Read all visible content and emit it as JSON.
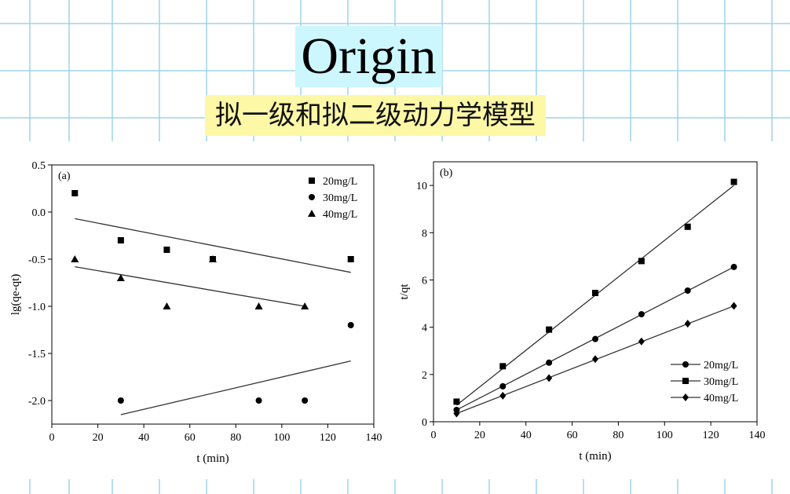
{
  "page": {
    "title": "Origin",
    "subtitle": "拟一级和拟二级动力学模型",
    "colors": {
      "grid": "#9fd4ec",
      "title_bg": "#ccf7ff",
      "subtitle_bg": "#fdf8a6"
    }
  },
  "chart_data": [
    {
      "type": "scatter",
      "panel_label": "(a)",
      "xlabel": "t (min)",
      "ylabel": "lg(qe-qt)",
      "xlim": [
        0,
        140
      ],
      "ylim": [
        -2.25,
        0.5
      ],
      "xticks": [
        "0",
        "20",
        "40",
        "60",
        "80",
        "100",
        "120",
        "140"
      ],
      "yticks": [
        "0.5",
        "0.0",
        "-0.5",
        "-1.0",
        "-1.5",
        "-2.0"
      ],
      "legend_position": "top-right",
      "series": [
        {
          "name": "20mg/L",
          "marker": "square",
          "x": [
            10,
            30,
            50,
            70,
            130
          ],
          "y": [
            0.2,
            -0.3,
            -0.4,
            -0.5,
            -0.5
          ],
          "fit": {
            "x": [
              10,
              130
            ],
            "y": [
              -0.07,
              -0.64
            ]
          }
        },
        {
          "name": "30mg/L",
          "marker": "circle",
          "x": [
            30,
            90,
            110,
            130
          ],
          "y": [
            -2.0,
            -2.0,
            -2.0,
            -1.2
          ],
          "fit": {
            "x": [
              30,
              130
            ],
            "y": [
              -2.15,
              -1.58
            ]
          }
        },
        {
          "name": "40mg/L",
          "marker": "triangle",
          "x": [
            10,
            30,
            50,
            70,
            90,
            110
          ],
          "y": [
            -0.5,
            -0.7,
            -1.0,
            -0.5,
            -1.0,
            -1.0
          ],
          "fit": {
            "x": [
              10,
              110
            ],
            "y": [
              -0.58,
              -1.0
            ]
          }
        }
      ]
    },
    {
      "type": "line",
      "panel_label": "(b)",
      "xlabel": "t (min)",
      "ylabel": "t/qt",
      "xlim": [
        0,
        140
      ],
      "ylim": [
        0,
        11
      ],
      "xticks": [
        "0",
        "20",
        "40",
        "60",
        "80",
        "100",
        "120",
        "140"
      ],
      "yticks": [
        "0",
        "2",
        "4",
        "6",
        "8",
        "10"
      ],
      "legend_position": "bottom-right",
      "series": [
        {
          "name": "20mg/L",
          "marker": "circle",
          "x": [
            10,
            30,
            50,
            70,
            90,
            110,
            130
          ],
          "y": [
            0.5,
            1.5,
            2.5,
            3.5,
            4.55,
            5.55,
            6.55
          ],
          "fit": {
            "x": [
              10,
              130
            ],
            "y": [
              0.5,
              6.55
            ]
          }
        },
        {
          "name": "30mg/L",
          "marker": "square",
          "x": [
            10,
            30,
            50,
            70,
            90,
            110,
            130
          ],
          "y": [
            0.85,
            2.35,
            3.9,
            5.45,
            6.8,
            8.25,
            10.15
          ],
          "fit": {
            "x": [
              10,
              130
            ],
            "y": [
              0.7,
              10.0
            ]
          }
        },
        {
          "name": "40mg/L",
          "marker": "diamond",
          "x": [
            10,
            30,
            50,
            70,
            90,
            110,
            130
          ],
          "y": [
            0.35,
            1.1,
            1.85,
            2.65,
            3.4,
            4.15,
            4.9
          ],
          "fit": {
            "x": [
              10,
              130
            ],
            "y": [
              0.35,
              4.9
            ]
          }
        }
      ]
    }
  ]
}
